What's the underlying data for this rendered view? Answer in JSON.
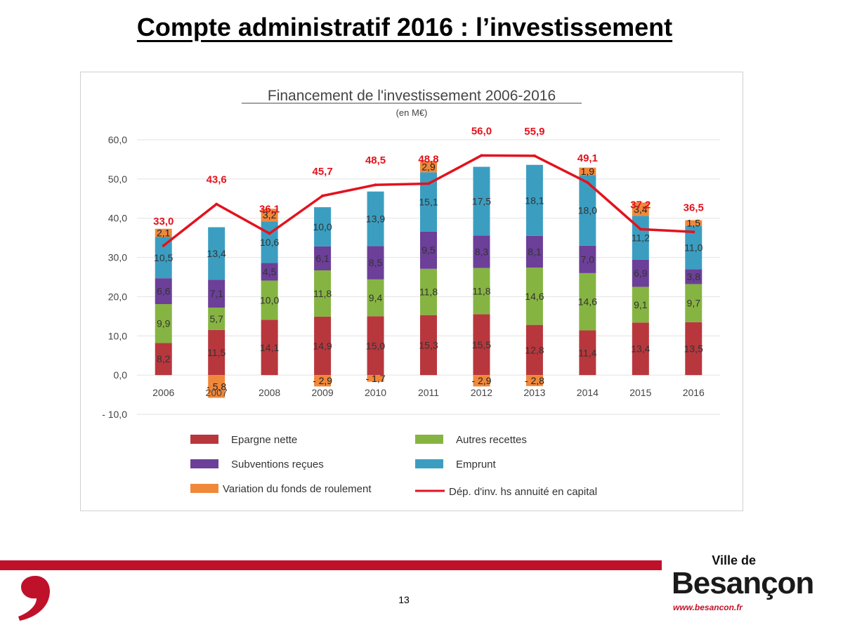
{
  "slide": {
    "title": "Compte administratif 2016 : l’investissement",
    "page_number": "13",
    "brand_small": "Ville de",
    "brand_big": "Besançon",
    "brand_url": "www.besancon.fr"
  },
  "chart_data": {
    "type": "bar",
    "stacked": true,
    "title": "Financement de l'investissement 2006-2016",
    "subtitle": "(en M€)",
    "categories": [
      "2006",
      "2007",
      "2008",
      "2009",
      "2010",
      "2011",
      "2012",
      "2013",
      "2014",
      "2015",
      "2016"
    ],
    "ylim": [
      -10,
      60
    ],
    "yticks": [
      -10,
      0,
      10,
      20,
      30,
      40,
      50,
      60
    ],
    "ytick_labels": [
      "- 10,0",
      "0,0",
      "10,0",
      "20,0",
      "30,0",
      "40,0",
      "50,0",
      "60,0"
    ],
    "grid": true,
    "legend_position": "bottom",
    "series": [
      {
        "name": "Epargne nette",
        "color": "#b8373d",
        "values": [
          8.2,
          11.5,
          14.1,
          14.9,
          15.0,
          15.3,
          15.5,
          12.8,
          11.4,
          13.4,
          13.5
        ],
        "labels": [
          "8,2",
          "11,5",
          "14,1",
          "14,9",
          "15,0",
          "15,3",
          "15,5",
          "12,8",
          "11,4",
          "13,4",
          "13,5"
        ]
      },
      {
        "name": "Autres recettes",
        "color": "#86b442",
        "values": [
          9.9,
          5.7,
          10.0,
          11.8,
          9.4,
          11.8,
          11.8,
          14.6,
          14.6,
          9.1,
          9.7
        ],
        "labels": [
          "9,9",
          "5,7",
          "10,0",
          "11,8",
          "9,4",
          "11,8",
          "11,8",
          "14,6",
          "14,6",
          "9,1",
          "9,7"
        ]
      },
      {
        "name": "Subventions reçues",
        "color": "#6c3f98",
        "values": [
          6.6,
          7.1,
          4.5,
          6.1,
          8.5,
          9.5,
          8.3,
          8.1,
          7.0,
          6.9,
          3.8
        ],
        "labels": [
          "6,6",
          "7,1",
          "4,5",
          "6,1",
          "8,5",
          "9,5",
          "8,3",
          "8,1",
          "7,0",
          "6,9",
          "3,8"
        ]
      },
      {
        "name": "Emprunt",
        "color": "#3b9ec1",
        "values": [
          10.5,
          13.4,
          10.6,
          10.0,
          13.9,
          15.1,
          17.5,
          18.1,
          18.0,
          11.2,
          11.0
        ],
        "labels": [
          "10,5",
          "13,4",
          "10,6",
          "10,0",
          "13,9",
          "15,1",
          "17,5",
          "18,1",
          "18,0",
          "11,2",
          "11,0"
        ]
      },
      {
        "name": "Variation du fonds de roulement",
        "color": "#f0883a",
        "values": [
          2.1,
          -5.8,
          3.2,
          -2.9,
          -1.7,
          2.9,
          -2.9,
          -2.8,
          1.9,
          3.4,
          1.5
        ],
        "labels": [
          "2,1",
          "- 5,8",
          "3,2",
          "- 2,9",
          "- 1,7",
          "2,9",
          "- 2,9",
          "- 2,8",
          "1,9",
          "3,4",
          "1,5"
        ]
      }
    ],
    "line": {
      "name": "Dép. d'inv. hs annuité en capital",
      "color": "#e3121d",
      "values": [
        33.0,
        43.6,
        36.1,
        45.7,
        48.5,
        48.8,
        56.0,
        55.9,
        49.1,
        37.2,
        36.5
      ],
      "labels": [
        "33,0",
        "43,6",
        "36,1",
        "45,7",
        "48,5",
        "48,8",
        "56,0",
        "55,9",
        "49,1",
        "37,2",
        "36,5"
      ]
    }
  }
}
